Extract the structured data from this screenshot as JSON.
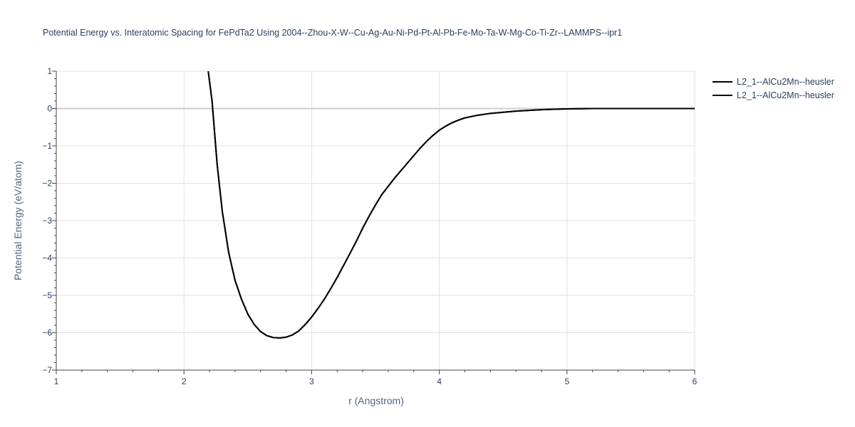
{
  "chart_data": {
    "type": "line",
    "title": "Potential Energy vs. Interatomic Spacing for FePdTa2 Using 2004--Zhou-X-W--Cu-Ag-Au-Ni-Pd-Pt-Al-Pb-Fe-Mo-Ta-W-Mg-Co-Ti-Zr--LAMMPS--ipr1",
    "xlabel": "r (Angstrom)",
    "ylabel": "Potential Energy (eV/atom)",
    "xlim": [
      1,
      6
    ],
    "ylim": [
      -7,
      1
    ],
    "x_ticks": [
      "1",
      "2",
      "3",
      "4",
      "5",
      "6"
    ],
    "y_ticks": [
      "1",
      "0",
      "−1",
      "−2",
      "−3",
      "−4",
      "−5",
      "−6",
      "−7"
    ],
    "grid": true,
    "legend_position": "top-right",
    "series": [
      {
        "name": "L2_1--AlCu2Mn--heusler",
        "color": "#000000",
        "x": [
          2.19,
          2.22,
          2.26,
          2.3,
          2.35,
          2.4,
          2.45,
          2.5,
          2.55,
          2.6,
          2.65,
          2.7,
          2.75,
          2.8,
          2.85,
          2.9,
          2.95,
          3.0,
          3.05,
          3.1,
          3.15,
          3.2,
          3.25,
          3.3,
          3.35,
          3.4,
          3.45,
          3.5,
          3.55,
          3.6,
          3.65,
          3.7,
          3.75,
          3.8,
          3.85,
          3.9,
          3.95,
          4.0,
          4.05,
          4.1,
          4.15,
          4.2,
          4.3,
          4.4,
          4.5,
          4.6,
          4.7,
          4.8,
          4.9,
          5.0,
          5.1,
          5.2,
          5.3,
          5.5,
          5.7,
          6.0
        ],
        "y": [
          1.0,
          0.2,
          -1.5,
          -2.75,
          -3.85,
          -4.6,
          -5.1,
          -5.5,
          -5.78,
          -5.97,
          -6.08,
          -6.13,
          -6.14,
          -6.12,
          -6.06,
          -5.95,
          -5.78,
          -5.58,
          -5.35,
          -5.1,
          -4.82,
          -4.52,
          -4.2,
          -3.88,
          -3.55,
          -3.2,
          -2.88,
          -2.58,
          -2.3,
          -2.08,
          -1.86,
          -1.66,
          -1.46,
          -1.26,
          -1.06,
          -0.88,
          -0.72,
          -0.58,
          -0.47,
          -0.38,
          -0.31,
          -0.25,
          -0.18,
          -0.13,
          -0.1,
          -0.07,
          -0.05,
          -0.03,
          -0.02,
          -0.01,
          -0.005,
          0.0,
          0.0,
          0.0,
          0.0,
          0.0
        ]
      },
      {
        "name": "L2_1--AlCu2Mn--heusler",
        "color": "#000000",
        "x": [
          2.19,
          2.22,
          2.26,
          2.3,
          2.35,
          2.4,
          2.45,
          2.5,
          2.55,
          2.6,
          2.65,
          2.7,
          2.75,
          2.8,
          2.85,
          2.9,
          2.95,
          3.0,
          3.05,
          3.1,
          3.15,
          3.2,
          3.25,
          3.3,
          3.35,
          3.4,
          3.45,
          3.5,
          3.55,
          3.6,
          3.65,
          3.7,
          3.75,
          3.8,
          3.85,
          3.9,
          3.95,
          4.0,
          4.05,
          4.1,
          4.15,
          4.2,
          4.3,
          4.4,
          4.5,
          4.6,
          4.7,
          4.8,
          4.9,
          5.0,
          5.1,
          5.2,
          5.3,
          5.5,
          5.7,
          6.0
        ],
        "y": [
          1.0,
          0.2,
          -1.5,
          -2.75,
          -3.85,
          -4.6,
          -5.1,
          -5.5,
          -5.78,
          -5.97,
          -6.08,
          -6.13,
          -6.14,
          -6.12,
          -6.06,
          -5.95,
          -5.78,
          -5.58,
          -5.35,
          -5.1,
          -4.82,
          -4.52,
          -4.2,
          -3.88,
          -3.55,
          -3.2,
          -2.88,
          -2.58,
          -2.3,
          -2.08,
          -1.86,
          -1.66,
          -1.46,
          -1.26,
          -1.06,
          -0.88,
          -0.72,
          -0.58,
          -0.47,
          -0.38,
          -0.31,
          -0.25,
          -0.18,
          -0.13,
          -0.1,
          -0.07,
          -0.05,
          -0.03,
          -0.02,
          -0.01,
          -0.005,
          0.0,
          0.0,
          0.0,
          0.0,
          0.0
        ]
      }
    ]
  }
}
